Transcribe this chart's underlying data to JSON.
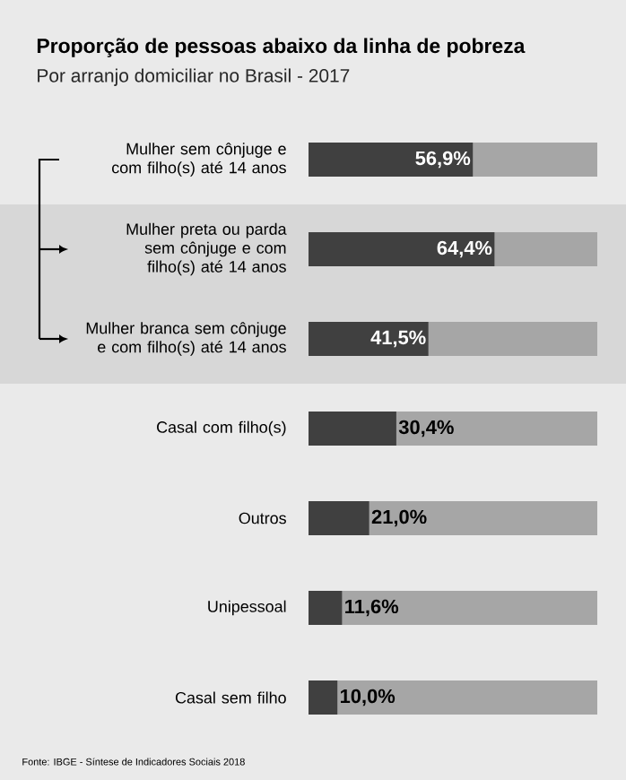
{
  "chart_data": {
    "type": "bar",
    "orientation": "horizontal",
    "title": "Proporção de pessoas abaixo da linha de pobreza",
    "subtitle": "Por arranjo domiciliar no Brasil - 2017",
    "categories": [
      "Mulher sem cônjuge e com filho(s) até 14 anos",
      "Mulher preta ou parda sem cônjuge e com filho(s) até 14 anos",
      "Mulher branca sem cônjuge e com filho(s) até 14 anos",
      "Casal com filho(s)",
      "Outros",
      "Unipessoal",
      "Casal sem filho"
    ],
    "values": [
      56.9,
      64.4,
      41.5,
      30.4,
      21.0,
      11.6,
      10.0
    ],
    "value_labels": [
      "56,9%",
      "64,4%",
      "41,5%",
      "30,4%",
      "21,0%",
      "11,6%",
      "10,0%"
    ],
    "color": "#404040",
    "xlim": [
      0,
      100
    ],
    "bands": [
      {
        "axis": "y",
        "from": "Mulher preta ou parda sem cônjuge e com filho(s) até 14 anos",
        "to": "Mulher branca sem cônjuge e com filho(s) até 14 anos",
        "color": "#d7d7d7"
      }
    ],
    "annotations": [
      "Fonte: IBGE - Síntese de Indicadores Sociais 2018"
    ]
  }
}
